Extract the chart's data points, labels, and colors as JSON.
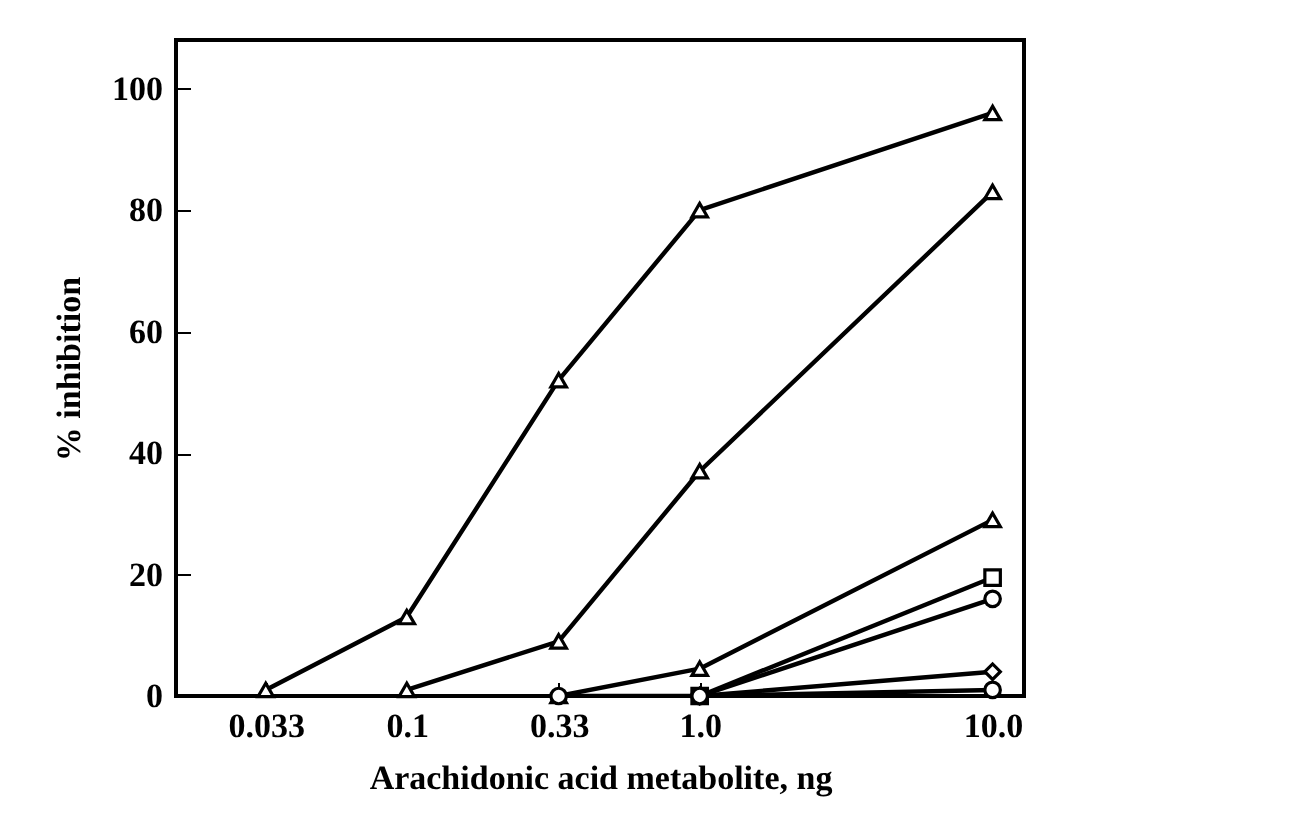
{
  "chart_data": {
    "type": "line",
    "xlabel": "Arachidonic acid metabolite, ng",
    "ylabel": "% inhibition",
    "log": "x",
    "xlim": [
      0.0163,
      12.8
    ],
    "xticks": [
      0.033,
      0.1,
      0.33,
      {
        "value": 1,
        "label": "1.0"
      },
      {
        "value": 10,
        "label": "10.0"
      }
    ],
    "ylim": [
      0,
      108
    ],
    "yticks": [
      0,
      20,
      40,
      60,
      80,
      100
    ],
    "grid": false,
    "line_style": "solid",
    "series": [
      {
        "color": "#000000",
        "marker": "triangle",
        "x": [
          0.033,
          0.1,
          0.33,
          1,
          10
        ],
        "values": [
          1,
          13,
          52,
          80,
          96
        ]
      },
      {
        "color": "#000000",
        "marker": "triangle",
        "x": [
          0.1,
          0.33,
          1,
          10
        ],
        "values": [
          1,
          9,
          37,
          83
        ]
      },
      {
        "color": "#000000",
        "marker": "triangle",
        "x": [
          0.33,
          1,
          10
        ],
        "values": [
          0,
          4.5,
          29
        ]
      },
      {
        "color": "#000000",
        "marker": "square",
        "x": [
          1,
          10
        ],
        "values": [
          0,
          19.5
        ]
      },
      {
        "color": "#000000",
        "marker": "circle",
        "x": [
          1,
          10
        ],
        "values": [
          0,
          16
        ]
      },
      {
        "color": "#000000",
        "marker": "diamond",
        "x": [
          1,
          10
        ],
        "values": [
          0,
          4
        ]
      },
      {
        "color": "#000000",
        "marker": "circle",
        "x": [
          0.33,
          1,
          10
        ],
        "values": [
          0,
          0,
          1
        ]
      }
    ]
  }
}
